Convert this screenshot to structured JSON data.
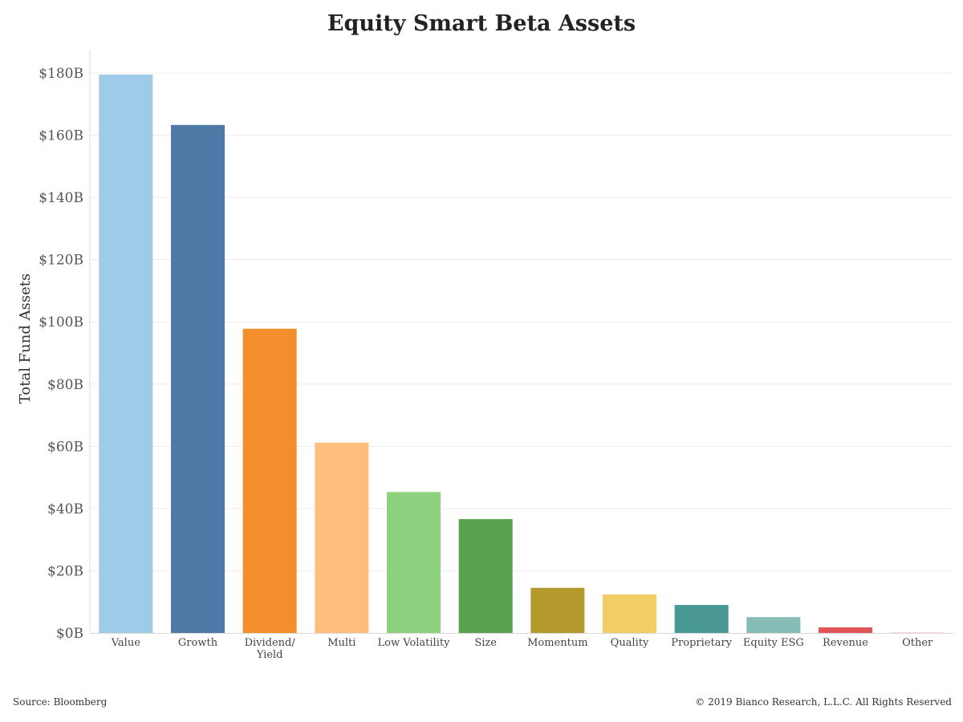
{
  "chart_data": {
    "type": "bar",
    "title": "Equity Smart Beta Assets",
    "xlabel": "",
    "ylabel": "Total Fund Assets",
    "ylim": [
      0,
      180
    ],
    "yticks": [
      {
        "value": 0,
        "label": "$0B"
      },
      {
        "value": 20,
        "label": "$20B"
      },
      {
        "value": 40,
        "label": "$40B"
      },
      {
        "value": 60,
        "label": "$60B"
      },
      {
        "value": 80,
        "label": "$80B"
      },
      {
        "value": 100,
        "label": "$100B"
      },
      {
        "value": 120,
        "label": "$120B"
      },
      {
        "value": 140,
        "label": "$140B"
      },
      {
        "value": 160,
        "label": "$160B"
      },
      {
        "value": 180,
        "label": "$180B"
      }
    ],
    "categories": [
      "Value",
      "Growth",
      "Dividend/\nYield",
      "Multi",
      "Low Volatility",
      "Size",
      "Momentum",
      "Quality",
      "Proprietary",
      "Equity ESG",
      "Revenue",
      "Other"
    ],
    "values": [
      179.5,
      163.3,
      97.8,
      61.2,
      45.3,
      36.6,
      14.5,
      12.4,
      9.0,
      5.1,
      1.8,
      0.1
    ],
    "colors": [
      "#a0cbe8",
      "#4e79a7",
      "#f28e2b",
      "#ffbe7d",
      "#8cd17d",
      "#59a14f",
      "#b6992d",
      "#f1ce63",
      "#499894",
      "#86bcb6",
      "#e15759",
      "#ff9d9a"
    ],
    "grid": true,
    "legend": "none"
  },
  "footer": {
    "source": "Source: Bloomberg",
    "copyright": "© 2019 Bianco Research, L.L.C. All Rights Reserved"
  }
}
